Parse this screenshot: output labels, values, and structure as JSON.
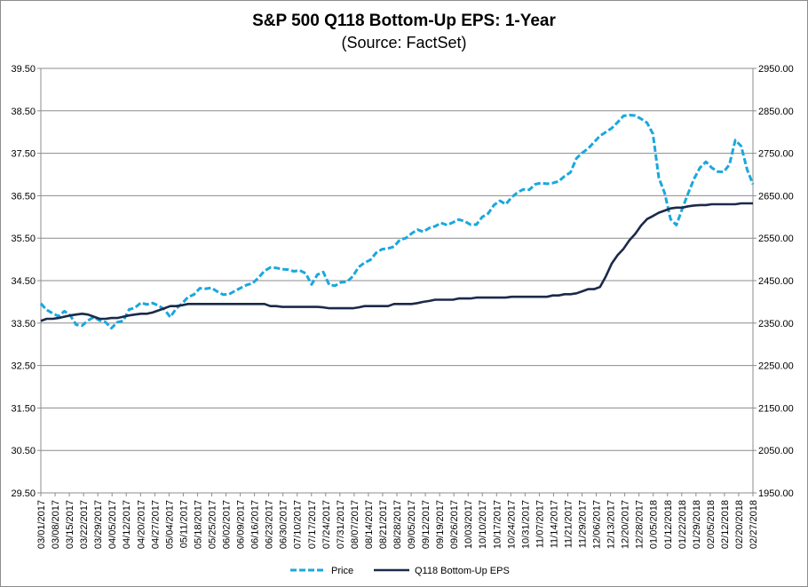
{
  "chart_data": {
    "type": "line",
    "title": "S&P 500 Q118 Bottom-Up EPS: 1-Year",
    "subtitle": "(Source: FactSet)",
    "x_tick_labels": [
      "03/01/2017",
      "03/08/2017",
      "03/15/2017",
      "03/22/2017",
      "03/29/2017",
      "04/05/2017",
      "04/12/2017",
      "04/20/2017",
      "04/27/2017",
      "05/04/2017",
      "05/11/2017",
      "05/18/2017",
      "05/25/2017",
      "06/02/2017",
      "06/09/2017",
      "06/16/2017",
      "06/23/2017",
      "06/30/2017",
      "07/10/2017",
      "07/17/2017",
      "07/24/2017",
      "07/31/2017",
      "08/07/2017",
      "08/14/2017",
      "08/21/2017",
      "08/28/2017",
      "09/05/2017",
      "09/12/2017",
      "09/19/2017",
      "09/26/2017",
      "10/03/2017",
      "10/10/2017",
      "10/17/2017",
      "10/24/2017",
      "10/31/2017",
      "11/07/2017",
      "11/14/2017",
      "11/21/2017",
      "11/29/2017",
      "12/06/2017",
      "12/13/2017",
      "12/20/2017",
      "12/28/2017",
      "01/05/2018",
      "01/12/2018",
      "01/22/2018",
      "01/29/2018",
      "02/05/2018",
      "02/12/2018",
      "02/20/2018",
      "02/27/2018"
    ],
    "y_left": {
      "min": 29.5,
      "max": 39.5,
      "ticks": [
        "29.50",
        "30.50",
        "31.50",
        "32.50",
        "33.50",
        "34.50",
        "35.50",
        "36.50",
        "37.50",
        "38.50",
        "39.50"
      ]
    },
    "y_right": {
      "min": 1950,
      "max": 2950,
      "ticks": [
        "1950.00",
        "2050.00",
        "2150.00",
        "2250.00",
        "2350.00",
        "2450.00",
        "2550.00",
        "2650.00",
        "2750.00",
        "2850.00",
        "2950.00"
      ]
    },
    "grid": true,
    "legend_position": "bottom",
    "series": [
      {
        "name": "Price",
        "axis": "right",
        "color": "#1aa7de",
        "dash": true,
        "values": [
          2396,
          2381,
          2373,
          2366,
          2378,
          2368,
          2346,
          2344,
          2356,
          2364,
          2356,
          2352,
          2338,
          2352,
          2355,
          2382,
          2386,
          2398,
          2394,
          2397,
          2391,
          2382,
          2364,
          2384,
          2396,
          2411,
          2417,
          2432,
          2431,
          2433,
          2424,
          2417,
          2418,
          2426,
          2433,
          2440,
          2444,
          2457,
          2473,
          2481,
          2480,
          2477,
          2476,
          2472,
          2474,
          2467,
          2441,
          2464,
          2470,
          2440,
          2438,
          2446,
          2447,
          2460,
          2482,
          2492,
          2499,
          2516,
          2524,
          2526,
          2530,
          2546,
          2550,
          2561,
          2570,
          2565,
          2574,
          2578,
          2586,
          2581,
          2587,
          2594,
          2590,
          2582,
          2582,
          2600,
          2608,
          2628,
          2638,
          2630,
          2646,
          2658,
          2665,
          2664,
          2677,
          2680,
          2678,
          2680,
          2684,
          2696,
          2705,
          2738,
          2751,
          2761,
          2776,
          2791,
          2800,
          2809,
          2823,
          2838,
          2840,
          2839,
          2831,
          2822,
          2796,
          2692,
          2656,
          2595,
          2581,
          2620,
          2656,
          2690,
          2716,
          2730,
          2716,
          2707,
          2706,
          2723,
          2781,
          2767,
          2712,
          2677
        ]
      },
      {
        "name": "Q118 Bottom-Up EPS",
        "axis": "left",
        "color": "#1b2a4a",
        "dash": false,
        "values": [
          33.55,
          33.6,
          33.6,
          33.62,
          33.65,
          33.68,
          33.7,
          33.72,
          33.7,
          33.65,
          33.6,
          33.6,
          33.62,
          33.62,
          33.65,
          33.68,
          33.7,
          33.72,
          33.72,
          33.75,
          33.8,
          33.85,
          33.9,
          33.9,
          33.92,
          33.95,
          33.95,
          33.95,
          33.95,
          33.95,
          33.95,
          33.95,
          33.95,
          33.95,
          33.95,
          33.95,
          33.95,
          33.95,
          33.95,
          33.9,
          33.9,
          33.88,
          33.88,
          33.88,
          33.88,
          33.88,
          33.88,
          33.88,
          33.87,
          33.85,
          33.85,
          33.85,
          33.85,
          33.85,
          33.87,
          33.9,
          33.9,
          33.9,
          33.9,
          33.9,
          33.95,
          33.95,
          33.95,
          33.95,
          33.97,
          34.0,
          34.02,
          34.05,
          34.05,
          34.05,
          34.05,
          34.08,
          34.08,
          34.08,
          34.1,
          34.1,
          34.1,
          34.1,
          34.1,
          34.1,
          34.12,
          34.12,
          34.12,
          34.12,
          34.12,
          34.12,
          34.12,
          34.15,
          34.15,
          34.18,
          34.18,
          34.2,
          34.25,
          34.3,
          34.3,
          34.35,
          34.6,
          34.9,
          35.1,
          35.25,
          35.45,
          35.6,
          35.8,
          35.95,
          36.02,
          36.1,
          36.15,
          36.2,
          36.22,
          36.22,
          36.25,
          36.27,
          36.28,
          36.28,
          36.3,
          36.3,
          36.3,
          36.3,
          36.3,
          36.32,
          36.32,
          36.32
        ]
      }
    ]
  }
}
